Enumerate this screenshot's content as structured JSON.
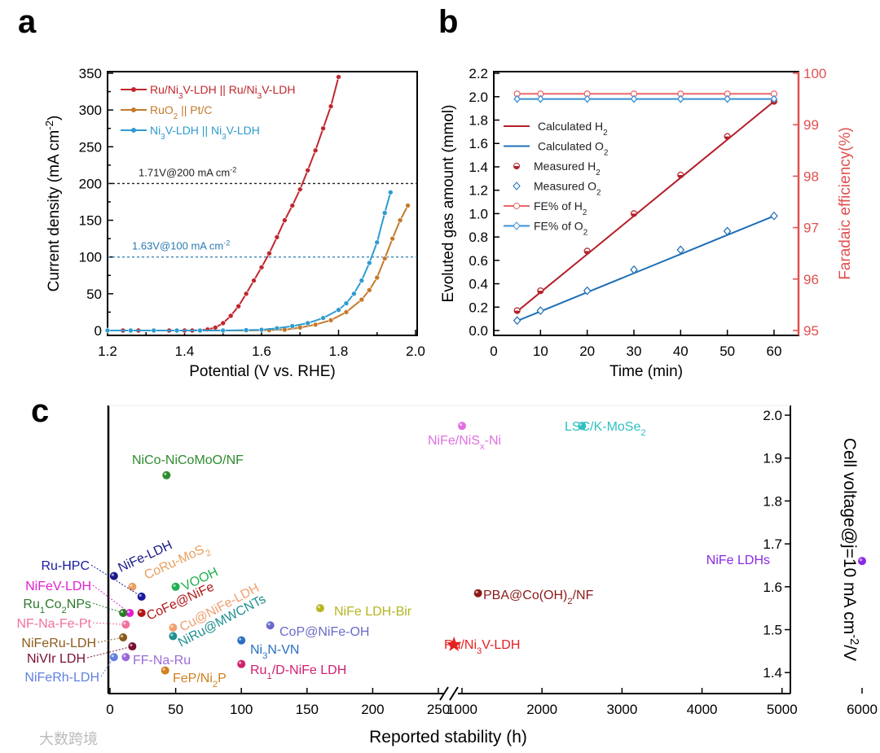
{
  "panel_labels": [
    "a",
    "b",
    "c"
  ],
  "watermark": "大数跨境",
  "chart_data": [
    {
      "panel": "a",
      "type": "line",
      "xlabel": "Potential (V vs. RHE)",
      "ylabel": "Current density (mA cm^{-2})",
      "xlim": [
        1.2,
        2.0
      ],
      "ylim": [
        0,
        350
      ],
      "xticks": [
        "1.2",
        "1.4",
        "1.6",
        "1.8",
        "2.0"
      ],
      "yticks": [
        "0",
        "50",
        "100",
        "150",
        "200",
        "250",
        "300",
        "350"
      ],
      "annotations": [
        {
          "text": "1.71V@200 mA cm^{-2}",
          "y": 200,
          "color": "#222222"
        },
        {
          "text": "1.63V@100 mA cm^{-2}",
          "y": 100,
          "color": "#2a7ab0"
        }
      ],
      "series": [
        {
          "name": "Ru/Ni_{3}V-LDH||Ru/Ni_{3}V-LDH",
          "color": "#c0272d",
          "x": [
            1.2,
            1.24,
            1.28,
            1.32,
            1.36,
            1.4,
            1.42,
            1.44,
            1.46,
            1.48,
            1.5,
            1.52,
            1.54,
            1.56,
            1.58,
            1.6,
            1.62,
            1.64,
            1.66,
            1.68,
            1.7,
            1.72,
            1.74,
            1.76,
            1.78,
            1.8
          ],
          "y": [
            0,
            0,
            0,
            0,
            0,
            0,
            0,
            0.5,
            1.5,
            4,
            10,
            20,
            33,
            50,
            68,
            86,
            105,
            127,
            150,
            170,
            192,
            218,
            245,
            275,
            305,
            345
          ]
        },
        {
          "name": "RuO_{2}||Pt/C",
          "color": "#c47a2c",
          "x": [
            1.2,
            1.26,
            1.32,
            1.38,
            1.44,
            1.5,
            1.56,
            1.62,
            1.66,
            1.7,
            1.74,
            1.78,
            1.82,
            1.86,
            1.88,
            1.9,
            1.92,
            1.94,
            1.96,
            1.98
          ],
          "y": [
            0,
            0,
            0,
            0,
            0,
            0,
            0,
            0.5,
            1,
            4,
            8,
            14,
            25,
            42,
            55,
            72,
            98,
            125,
            150,
            170
          ]
        },
        {
          "name": "Ni_{3}V-LDH||Ni_{3}V-LDH",
          "color": "#2e9bd0",
          "x": [
            1.2,
            1.26,
            1.32,
            1.38,
            1.44,
            1.5,
            1.56,
            1.6,
            1.64,
            1.68,
            1.72,
            1.76,
            1.8,
            1.82,
            1.84,
            1.86,
            1.88,
            1.9,
            1.92,
            1.935
          ],
          "y": [
            0,
            0,
            0,
            0,
            0,
            0,
            0.5,
            1,
            3,
            6,
            10,
            17,
            28,
            37,
            50,
            68,
            92,
            120,
            160,
            188
          ]
        }
      ]
    },
    {
      "panel": "b",
      "type": "line",
      "xlabel": "Time (min)",
      "ylabel": "Evoluted gas amount (mmol)",
      "y2label": "Faradaic efficiency(%)",
      "xlim": [
        0,
        65
      ],
      "ylim": [
        0,
        2.2
      ],
      "y2lim": [
        95,
        100
      ],
      "xticks": [
        "0",
        "10",
        "20",
        "30",
        "40",
        "50",
        "60"
      ],
      "yticks": [
        "0.0",
        "0.2",
        "0.4",
        "0.6",
        "0.8",
        "1.0",
        "1.2",
        "1.4",
        "1.6",
        "1.8",
        "2.0",
        "2.2"
      ],
      "y2ticks": [
        "95",
        "96",
        "97",
        "98",
        "99",
        "100"
      ],
      "x": [
        5,
        10,
        20,
        30,
        40,
        50,
        60
      ],
      "series": [
        {
          "name": "Calculated H_{2}",
          "color": "#b3202a",
          "kind": "line",
          "y": [
            0.163,
            0.327,
            0.653,
            0.98,
            1.307,
            1.633,
            1.96
          ]
        },
        {
          "name": "Calculated O_{2}",
          "color": "#1f6fb5",
          "kind": "line",
          "y": [
            0.082,
            0.163,
            0.327,
            0.49,
            0.653,
            0.817,
            0.98
          ]
        },
        {
          "name": "Measured H_{2}",
          "color": "#b3202a",
          "kind": "marker",
          "y": [
            0.17,
            0.34,
            0.68,
            1.0,
            1.33,
            1.66,
            1.96
          ]
        },
        {
          "name": "Measured O_{2}",
          "color": "#1f6fb5",
          "kind": "marker",
          "y": [
            0.085,
            0.17,
            0.34,
            0.52,
            0.69,
            0.85,
            0.98
          ]
        },
        {
          "name": "FE% of H_{2}",
          "color": "#e8686a",
          "kind": "fe",
          "y": [
            99.6,
            99.6,
            99.6,
            99.6,
            99.6,
            99.6,
            99.6
          ]
        },
        {
          "name": "FE% of O_{2}",
          "color": "#3a8fd6",
          "kind": "fe",
          "y": [
            99.5,
            99.5,
            99.5,
            99.5,
            99.5,
            99.5,
            99.5
          ]
        }
      ]
    },
    {
      "panel": "c",
      "type": "scatter",
      "xlabel": "Reported stability (h)",
      "ylabel": "Cell voltage@j=10 mA cm^{-2}/V",
      "xlim_segments": [
        [
          0,
          250
        ],
        [
          1000,
          6000
        ]
      ],
      "ylim": [
        1.35,
        2.02
      ],
      "xticks": [
        "0",
        "50",
        "100",
        "150",
        "200",
        "250",
        "1000",
        "2000",
        "3000",
        "4000",
        "5000",
        "6000"
      ],
      "yticks": [
        "1.4",
        "1.5",
        "1.6",
        "1.7",
        "1.8",
        "1.9",
        "2.0"
      ],
      "points": [
        {
          "name": "NiCo-NiCoMoO/NF",
          "x": 43,
          "y": 1.86,
          "color": "#2e8b2e"
        },
        {
          "name": "NiFe/NiS_{x}-Ni",
          "x": 1000,
          "y": 1.975,
          "color": "#e070e0"
        },
        {
          "name": "LSC/K-MoSe_{2}",
          "x": 2500,
          "y": 1.975,
          "color": "#30c0c0"
        },
        {
          "name": "NiFe LDHs",
          "x": 6000,
          "y": 1.66,
          "color": "#8a2be2"
        },
        {
          "name": "PBA@Co(OH)_{2}/NF",
          "x": 1200,
          "y": 1.585,
          "color": "#8b1a1a"
        },
        {
          "name": "Ru/Ni_{3}V-LDH",
          "x": 900,
          "y": 1.465,
          "color": "#e52020",
          "marker": "star"
        },
        {
          "name": "NiFe LDH-Bir",
          "x": 160,
          "y": 1.55,
          "color": "#b5b520"
        },
        {
          "name": "CoP@NiFe-OH",
          "x": 122,
          "y": 1.51,
          "color": "#6a6ac8"
        },
        {
          "name": "Ni_{3}N-VN",
          "x": 100,
          "y": 1.475,
          "color": "#2a6fc0"
        },
        {
          "name": "Ru_{1}/D-NiFe LDH",
          "x": 100,
          "y": 1.42,
          "color": "#d02070"
        },
        {
          "name": "FeP/Ni_{2}P",
          "x": 42,
          "y": 1.405,
          "color": "#d08020"
        },
        {
          "name": "FF-Na-Ru",
          "x": 12,
          "y": 1.436,
          "color": "#9b6ad8"
        },
        {
          "name": "NiRu@MWCNTs",
          "x": 48,
          "y": 1.485,
          "color": "#209090"
        },
        {
          "name": "Cu@NiFe-LDH",
          "x": 48,
          "y": 1.505,
          "color": "#f0a070"
        },
        {
          "name": "VOOH",
          "x": 50,
          "y": 1.6,
          "color": "#20b050"
        },
        {
          "name": "CoRu-MoS_{2}",
          "x": 17,
          "y": 1.6,
          "color": "#e8a060"
        },
        {
          "name": "NiFe-LDH",
          "x": 3,
          "y": 1.625,
          "color": "#1a1a8a"
        },
        {
          "name": "Ru-HPC",
          "x": 24,
          "y": 1.577,
          "color": "#1a1aa0"
        },
        {
          "name": "CoFe@NiFe",
          "x": 24,
          "y": 1.539,
          "color": "#b01818"
        },
        {
          "name": "NiFeV-LDH",
          "x": 15,
          "y": 1.539,
          "color": "#e020d0"
        },
        {
          "name": "Ru_{1}Co_{2}NPs",
          "x": 10,
          "y": 1.539,
          "color": "#2a7a2a"
        },
        {
          "name": "NF-Na-Fe-Pt",
          "x": 12,
          "y": 1.512,
          "color": "#f070a0"
        },
        {
          "name": "NiFeRu-LDH",
          "x": 10,
          "y": 1.482,
          "color": "#8b5a1a"
        },
        {
          "name": "NiVIr LDH",
          "x": 17,
          "y": 1.461,
          "color": "#7a1030"
        },
        {
          "name": "NiFeRh-LDH",
          "x": 3,
          "y": 1.436,
          "color": "#6080e0"
        }
      ]
    }
  ]
}
